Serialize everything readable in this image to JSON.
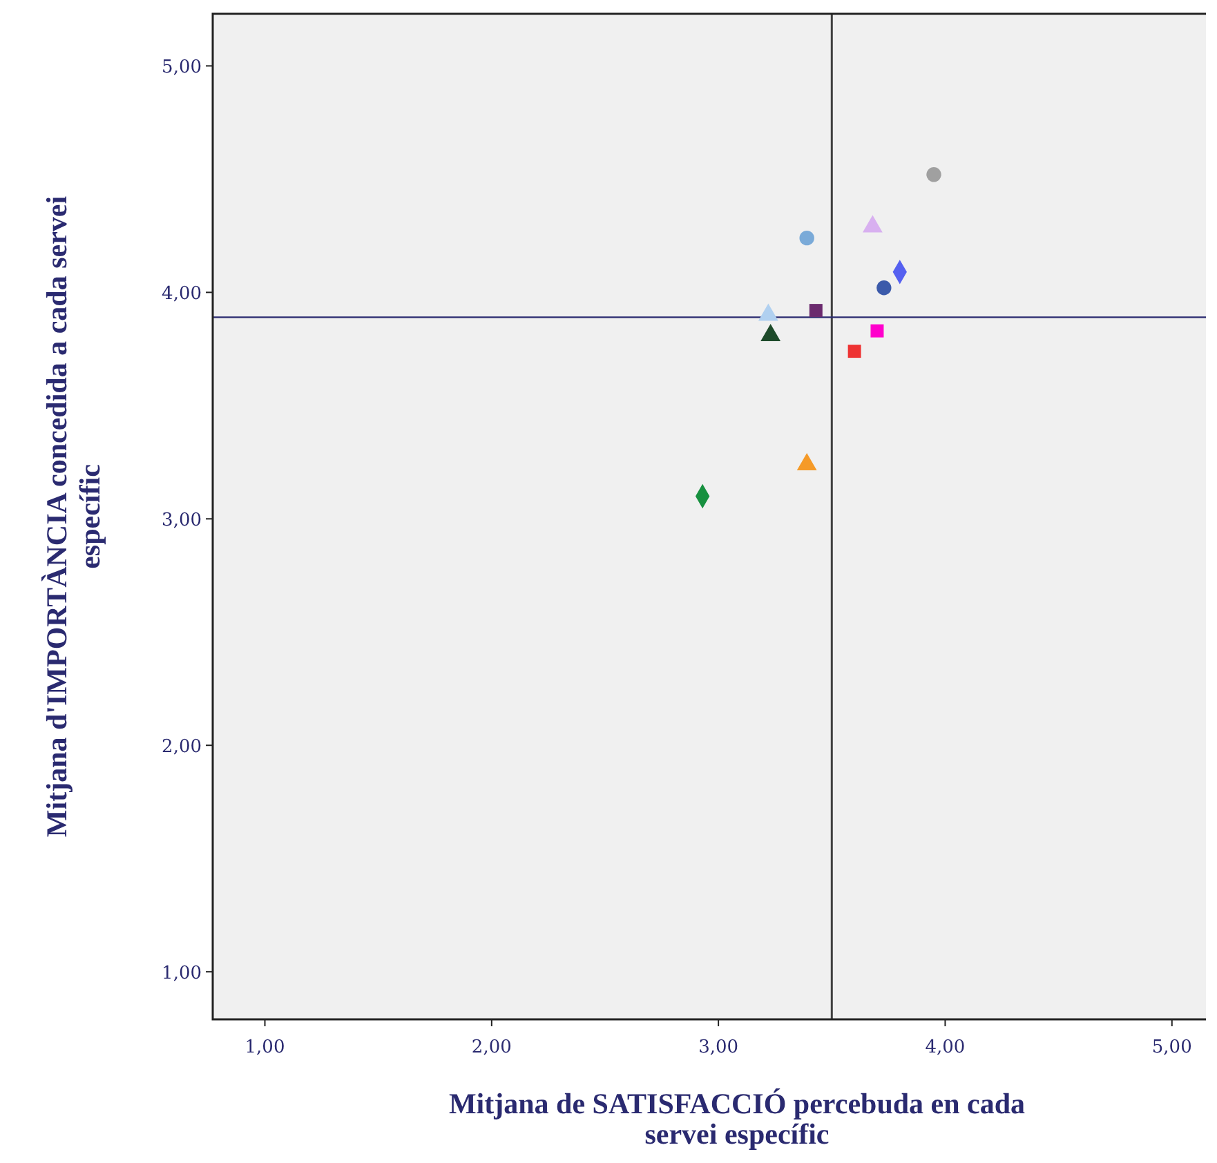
{
  "chart_data": {
    "type": "scatter",
    "xlabel": "Mitjana de SATISFACCIÓ percebuda en cada servei específic",
    "ylabel": "Mitjana d'IMPORTÀNCIA concedida a cada servei específic",
    "xlim": [
      0.77,
      5.15
    ],
    "ylim": [
      0.79,
      5.23
    ],
    "xticks": [
      {
        "value": 1,
        "label": "1,00"
      },
      {
        "value": 2,
        "label": "2,00"
      },
      {
        "value": 3,
        "label": "3,00"
      },
      {
        "value": 4,
        "label": "4,00"
      },
      {
        "value": 5,
        "label": "5,00"
      }
    ],
    "yticks": [
      {
        "value": 1,
        "label": "1,00"
      },
      {
        "value": 2,
        "label": "2,00"
      },
      {
        "value": 3,
        "label": "3,00"
      },
      {
        "value": 4,
        "label": "4,00"
      },
      {
        "value": 5,
        "label": "5,00"
      }
    ],
    "grid": false,
    "ref_lines": [
      {
        "axis": "x",
        "value": 3.5,
        "color": "#404040"
      },
      {
        "axis": "y",
        "value": 3.89,
        "color": "#2a2a70"
      }
    ],
    "series": [
      {
        "color": "#a0a0a0",
        "marker": "circle",
        "x": [
          3.95
        ],
        "values": [
          4.52
        ]
      },
      {
        "color": "#d8b0f0",
        "marker": "triangle",
        "x": [
          3.68
        ],
        "values": [
          4.29
        ]
      },
      {
        "color": "#7aaad8",
        "marker": "circle",
        "x": [
          3.39
        ],
        "values": [
          4.24
        ]
      },
      {
        "color": "#5560f0",
        "marker": "diamond",
        "x": [
          3.8
        ],
        "values": [
          4.09
        ]
      },
      {
        "color": "#3b5aaa",
        "marker": "circle",
        "x": [
          3.73
        ],
        "values": [
          4.02
        ]
      },
      {
        "color": "#6b2a6e",
        "marker": "square",
        "x": [
          3.43
        ],
        "values": [
          3.92
        ]
      },
      {
        "color": "#b0d0f0",
        "marker": "triangle",
        "x": [
          3.22
        ],
        "values": [
          3.9
        ]
      },
      {
        "color": "#1d4a2a",
        "marker": "triangle",
        "x": [
          3.23
        ],
        "values": [
          3.81
        ]
      },
      {
        "color": "#ff00cc",
        "marker": "square",
        "x": [
          3.7
        ],
        "values": [
          3.83
        ]
      },
      {
        "color": "#ee3333",
        "marker": "square",
        "x": [
          3.6
        ],
        "values": [
          3.74
        ]
      },
      {
        "color": "#f59a28",
        "marker": "triangle",
        "x": [
          3.39
        ],
        "values": [
          3.24
        ]
      },
      {
        "color": "#17903f",
        "marker": "diamond",
        "x": [
          2.93
        ],
        "values": [
          3.1
        ]
      }
    ]
  }
}
